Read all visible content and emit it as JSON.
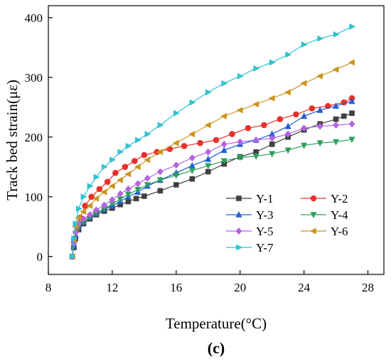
{
  "chart_data": {
    "type": "line",
    "xlabel": "Temperature(°C)",
    "ylabel": "Track bed strain(με)",
    "panel_label": "(c)",
    "xlim": [
      8,
      29
    ],
    "ylim": [
      -30,
      420
    ],
    "xticks": [
      8,
      12,
      16,
      20,
      24,
      28
    ],
    "yticks": [
      0,
      100,
      200,
      300,
      400
    ],
    "grid": false,
    "legend_position": "lower-right",
    "series": [
      {
        "name": "Y-1",
        "color": "#404040",
        "marker": "square",
        "x": [
          9.5,
          9.6,
          9.7,
          9.9,
          10.2,
          10.6,
          11.0,
          11.5,
          12.0,
          12.5,
          13.0,
          13.5,
          14.0,
          15.0,
          16.0,
          17.0,
          18.0,
          19.0,
          20.0,
          21.0,
          22.0,
          23.0,
          24.0,
          25.0,
          26.0,
          26.5,
          27.0
        ],
        "y": [
          0,
          15,
          30,
          45,
          55,
          63,
          70,
          76,
          81,
          87,
          92,
          97,
          101,
          110,
          120,
          130,
          142,
          155,
          167,
          175,
          188,
          200,
          212,
          222,
          230,
          235,
          240
        ]
      },
      {
        "name": "Y-2",
        "color": "#e8302c",
        "marker": "circle",
        "x": [
          9.5,
          9.6,
          9.8,
          10.0,
          10.3,
          10.7,
          11.2,
          11.7,
          12.2,
          12.8,
          13.4,
          14.0,
          14.8,
          15.6,
          16.5,
          17.5,
          18.5,
          19.5,
          20.5,
          21.5,
          22.5,
          23.5,
          24.5,
          25.5,
          26.5,
          27.0
        ],
        "y": [
          0,
          25,
          45,
          65,
          85,
          100,
          113,
          125,
          140,
          150,
          160,
          170,
          175,
          180,
          185,
          190,
          195,
          205,
          215,
          220,
          230,
          238,
          248,
          252,
          258,
          265
        ]
      },
      {
        "name": "Y-3",
        "color": "#1f5fd0",
        "marker": "triangle-up",
        "x": [
          9.5,
          9.6,
          9.7,
          9.9,
          10.2,
          10.6,
          11.0,
          11.5,
          12.0,
          12.5,
          13.0,
          13.6,
          14.2,
          15.0,
          16.0,
          17.0,
          18.0,
          19.0,
          20.0,
          21.0,
          22.0,
          23.0,
          24.0,
          25.0,
          26.0,
          27.0
        ],
        "y": [
          0,
          18,
          35,
          50,
          58,
          66,
          72,
          79,
          85,
          92,
          100,
          108,
          118,
          128,
          140,
          152,
          163,
          178,
          188,
          195,
          205,
          218,
          235,
          245,
          252,
          260
        ]
      },
      {
        "name": "Y-4",
        "color": "#2e9e5e",
        "marker": "triangle-down",
        "x": [
          9.5,
          9.6,
          9.7,
          9.9,
          10.2,
          10.6,
          11.0,
          11.5,
          12.0,
          12.5,
          13.0,
          13.6,
          14.2,
          15.0,
          16.0,
          17.0,
          18.0,
          19.0,
          20.0,
          21.0,
          22.0,
          23.0,
          24.0,
          25.0,
          26.0,
          27.0
        ],
        "y": [
          0,
          20,
          38,
          50,
          58,
          66,
          73,
          80,
          88,
          96,
          104,
          112,
          120,
          128,
          136,
          144,
          152,
          160,
          166,
          168,
          172,
          178,
          186,
          190,
          192,
          196
        ]
      },
      {
        "name": "Y-5",
        "color": "#b464e0",
        "marker": "diamond",
        "x": [
          9.5,
          9.6,
          9.7,
          9.9,
          10.2,
          10.6,
          11.0,
          11.5,
          12.0,
          12.5,
          13.0,
          13.6,
          14.2,
          15.0,
          16.0,
          17.0,
          18.0,
          19.0,
          20.0,
          21.0,
          22.0,
          23.0,
          24.0,
          25.0,
          26.0,
          27.0
        ],
        "y": [
          0,
          22,
          40,
          55,
          63,
          70,
          78,
          86,
          95,
          105,
          113,
          122,
          131,
          142,
          153,
          165,
          175,
          188,
          192,
          195,
          198,
          205,
          215,
          218,
          220,
          222
        ]
      },
      {
        "name": "Y-6",
        "color": "#c8961e",
        "marker": "triangle-left",
        "x": [
          9.5,
          9.6,
          9.7,
          9.9,
          10.2,
          10.6,
          11.0,
          11.5,
          12.0,
          12.5,
          13.0,
          13.6,
          14.2,
          15.0,
          16.0,
          17.0,
          18.0,
          19.0,
          20.0,
          21.0,
          22.0,
          23.0,
          24.0,
          25.0,
          26.0,
          27.0
        ],
        "y": [
          0,
          28,
          50,
          65,
          75,
          85,
          97,
          108,
          118,
          128,
          138,
          150,
          162,
          175,
          190,
          205,
          220,
          235,
          245,
          255,
          265,
          275,
          290,
          302,
          313,
          325
        ]
      },
      {
        "name": "Y-7",
        "color": "#2ec4d0",
        "marker": "triangle-right",
        "x": [
          9.5,
          9.6,
          9.7,
          9.9,
          10.2,
          10.6,
          11.0,
          11.5,
          12.0,
          12.5,
          13.0,
          13.6,
          14.2,
          15.0,
          16.0,
          17.0,
          18.0,
          19.0,
          20.0,
          21.0,
          22.0,
          23.0,
          24.0,
          25.0,
          26.0,
          27.0
        ],
        "y": [
          0,
          30,
          55,
          80,
          100,
          118,
          133,
          150,
          162,
          175,
          185,
          195,
          205,
          220,
          240,
          258,
          275,
          290,
          302,
          315,
          325,
          338,
          355,
          365,
          372,
          385
        ]
      }
    ]
  }
}
